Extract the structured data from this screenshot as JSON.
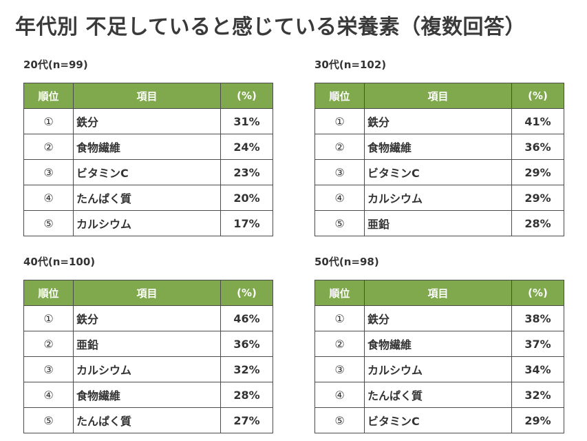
{
  "title": "年代別  不足していると感じている栄養素（複数回答）",
  "headers": {
    "rank": "順位",
    "item": "項目",
    "pct": "(%)"
  },
  "sections": [
    {
      "label": "20代(n=99)",
      "rows": [
        {
          "rank": "①",
          "item": "鉄分",
          "pct": "31%"
        },
        {
          "rank": "②",
          "item": "食物繊維",
          "pct": "24%"
        },
        {
          "rank": "③",
          "item": "ビタミンC",
          "pct": "23%"
        },
        {
          "rank": "④",
          "item": "たんぱく質",
          "pct": "20%"
        },
        {
          "rank": "⑤",
          "item": "カルシウム",
          "pct": "17%"
        }
      ]
    },
    {
      "label": "30代(n=102)",
      "rows": [
        {
          "rank": "①",
          "item": "鉄分",
          "pct": "41%"
        },
        {
          "rank": "②",
          "item": "食物繊維",
          "pct": "36%"
        },
        {
          "rank": "③",
          "item": "ビタミンC",
          "pct": "29%"
        },
        {
          "rank": "④",
          "item": "カルシウム",
          "pct": "29%"
        },
        {
          "rank": "⑤",
          "item": "亜鉛",
          "pct": "28%"
        }
      ]
    },
    {
      "label": "40代(n=100)",
      "rows": [
        {
          "rank": "①",
          "item": "鉄分",
          "pct": "46%"
        },
        {
          "rank": "②",
          "item": "亜鉛",
          "pct": "36%"
        },
        {
          "rank": "③",
          "item": "カルシウム",
          "pct": "32%"
        },
        {
          "rank": "④",
          "item": "食物繊維",
          "pct": "28%"
        },
        {
          "rank": "⑤",
          "item": "たんぱく質",
          "pct": "27%"
        }
      ]
    },
    {
      "label": "50代(n=98)",
      "rows": [
        {
          "rank": "①",
          "item": "鉄分",
          "pct": "38%"
        },
        {
          "rank": "②",
          "item": "食物繊維",
          "pct": "37%"
        },
        {
          "rank": "③",
          "item": "カルシウム",
          "pct": "34%"
        },
        {
          "rank": "④",
          "item": "たんぱく質",
          "pct": "32%"
        },
        {
          "rank": "⑤",
          "item": "ビタミンC",
          "pct": "29%"
        }
      ]
    }
  ],
  "colors": {
    "header_bg": "#7fa94c",
    "header_text": "#ffffff",
    "border": "#4a4a4a",
    "text": "#333333"
  }
}
